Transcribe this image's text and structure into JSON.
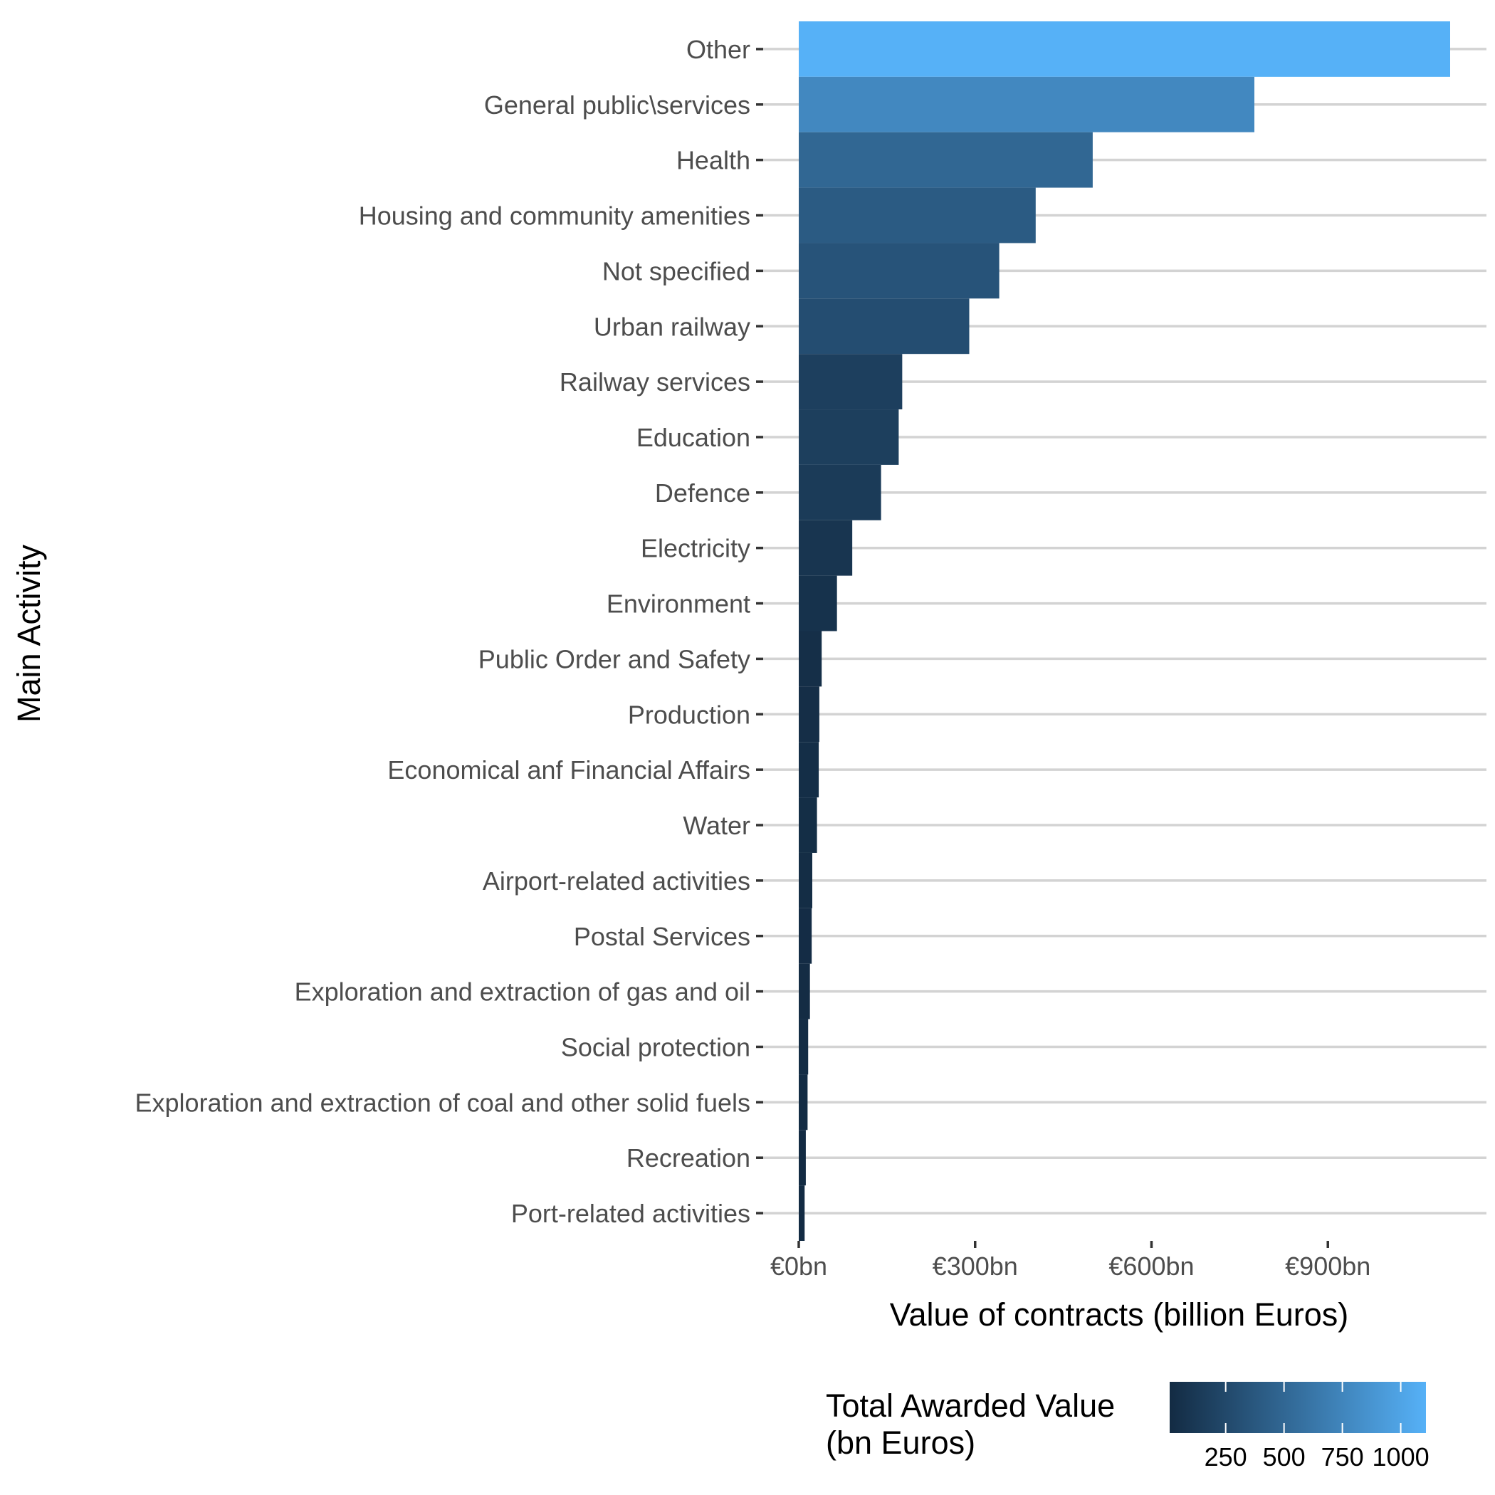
{
  "chart_data": {
    "type": "bar",
    "orientation": "horizontal",
    "categories": [
      "Other",
      "General public\\services",
      "Health",
      "Housing and community amenities",
      "Not specified",
      "Urban railway",
      "Railway services",
      "Education",
      "Defence",
      "Electricity",
      "Environment",
      "Public Order and Safety",
      "Production",
      "Economical anf Financial Affairs",
      "Water",
      "Airport-related activities",
      "Postal Services",
      "Exploration and extraction of gas and oil",
      "Social protection",
      "Exploration and extraction of coal and other solid fuels",
      "Recreation",
      "Port-related activities"
    ],
    "values": [
      1108,
      775,
      500,
      403,
      341,
      290,
      176,
      170,
      140,
      91,
      65,
      39,
      35,
      34,
      31,
      23,
      22,
      19,
      16,
      15,
      12,
      10
    ],
    "xlabel": "Value of contracts (billion Euros)",
    "ylabel": "Main Activity",
    "xlim": [
      0,
      1165
    ],
    "x_ticks": [
      0,
      300,
      600,
      900
    ],
    "x_tick_labels": [
      "€0bn",
      "€300bn",
      "€600bn",
      "€900bn"
    ],
    "grid": "horizontal major lines",
    "legend": {
      "position": "bottom",
      "title_line1": "Total Awarded Value",
      "title_line2": "(bn Euros)",
      "type": "colorbar",
      "range": [
        10,
        1108
      ],
      "ticks": [
        250,
        500,
        750,
        1000
      ],
      "tick_labels": [
        "250",
        "500",
        "750",
        "1000"
      ],
      "color_low": "#132B43",
      "color_high": "#56B1F7"
    }
  }
}
